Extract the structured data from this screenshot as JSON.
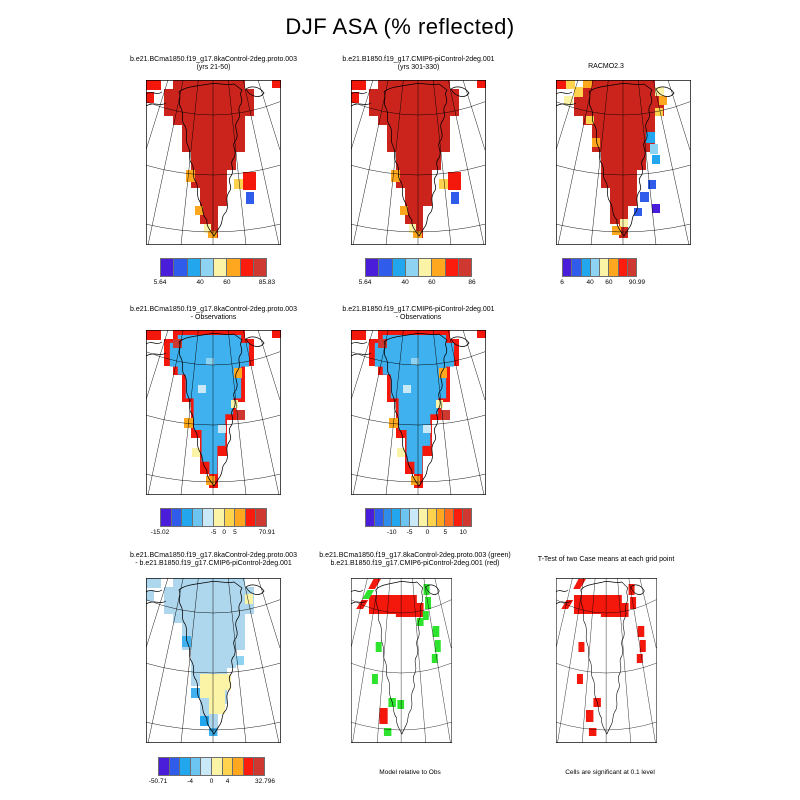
{
  "figure": {
    "title": "DJF ASA (% reflected)"
  },
  "panels": [
    {
      "id": "r1p1",
      "title_line1": "b.e21.BCma1850.f19_g17.8kaControl-2deg.proto.003",
      "title_line2": "(yrs 21-50)"
    },
    {
      "id": "r1p2",
      "title_line1": "b.e21.B1850.f19_g17.CMIP6-piControl-2deg.001",
      "title_line2": "(yrs 301-330)"
    },
    {
      "id": "r1p3",
      "title_line1": "RACMO2.3",
      "title_line2": ""
    },
    {
      "id": "r2p1",
      "title_line1": "b.e21.BCma1850.f19_g17.8kaControl-2deg.proto.003",
      "title_line2": "- Observations"
    },
    {
      "id": "r2p2",
      "title_line1": "b.e21.B1850.f19_g17.CMIP6-piControl-2deg.001",
      "title_line2": "- Observations"
    },
    {
      "id": "r3p1",
      "title_line1": "b.e21.BCma1850.f19_g17.8kaControl-2deg.proto.003",
      "title_line2": "- b.e21.B1850.f19_g17.CMIP6-piControl-2deg.001"
    },
    {
      "id": "r3p2",
      "title_line1": "b.e21.BCma1850.f19_g17.8kaControl-2deg.proto.003 (green)",
      "title_line2": "b.e21.B1850.f19_g17.CMIP6-piControl-2deg.001 (red)",
      "caption": "Model relative to Obs"
    },
    {
      "id": "r3p3",
      "title_line1": "T-Test of two Case means at each grid point",
      "title_line2": "",
      "caption": "Cells are significant at 0.1 level"
    }
  ],
  "colorbars": {
    "r1p1": {
      "cells": [
        "#4a1ddb",
        "#2f5ceb",
        "#22a7ee",
        "#8ed4f2",
        "#fbf3a6",
        "#ffa81f",
        "#fb1c0e",
        "#cf3830"
      ],
      "ticks": [
        {
          "label": "5.64",
          "pos": 0
        },
        {
          "label": "40",
          "pos": 0.375
        },
        {
          "label": "60",
          "pos": 0.625
        },
        {
          "label": "85.83",
          "pos": 1
        }
      ]
    },
    "r1p2": {
      "cells": [
        "#4a1ddb",
        "#2f5ceb",
        "#22a7ee",
        "#8ed4f2",
        "#fbf3a6",
        "#ffa81f",
        "#fb1c0e",
        "#cf3830"
      ],
      "ticks": [
        {
          "label": "5.64",
          "pos": 0
        },
        {
          "label": "40",
          "pos": 0.375
        },
        {
          "label": "60",
          "pos": 0.625
        },
        {
          "label": "86",
          "pos": 1
        }
      ]
    },
    "r1p3": {
      "cells": [
        "#4a1ddb",
        "#2f5ceb",
        "#22a7ee",
        "#8ed4f2",
        "#fbf3a6",
        "#ffa81f",
        "#fb1c0e",
        "#cf3830"
      ],
      "ticks": [
        {
          "label": "6",
          "pos": 0
        },
        {
          "label": "40",
          "pos": 0.375
        },
        {
          "label": "60",
          "pos": 0.625
        },
        {
          "label": "90.99",
          "pos": 1
        }
      ]
    },
    "r2p1": {
      "cells": [
        "#4a1ddb",
        "#2f5ceb",
        "#22a7ee",
        "#6cc4f0",
        "#c9e9f9",
        "#fbf3a6",
        "#ffd34e",
        "#ffa81f",
        "#fb1c0e",
        "#cf3830"
      ],
      "ticks": [
        {
          "label": "-15.02",
          "pos": 0
        },
        {
          "label": "-5",
          "pos": 0.5
        },
        {
          "label": "0",
          "pos": 0.6
        },
        {
          "label": "5",
          "pos": 0.7
        },
        {
          "label": "70.91",
          "pos": 1
        }
      ]
    },
    "r2p2": {
      "cells": [
        "#4a1ddb",
        "#2f5ceb",
        "#2f8ceb",
        "#22a7ee",
        "#6cc4f0",
        "#c9e9f9",
        "#fbf3a6",
        "#ffd34e",
        "#ffa81f",
        "#ff6a1f",
        "#fb1c0e",
        "#cf3830"
      ],
      "ticks": [
        {
          "label": "-10",
          "pos": 0.25
        },
        {
          "label": "-5",
          "pos": 0.417
        },
        {
          "label": "0",
          "pos": 0.583
        },
        {
          "label": "5",
          "pos": 0.75
        },
        {
          "label": "10",
          "pos": 0.917
        }
      ]
    },
    "r3p1": {
      "cells": [
        "#4a1ddb",
        "#2f5ceb",
        "#22a7ee",
        "#6cc4f0",
        "#c9e9f9",
        "#fbf3a6",
        "#ffd34e",
        "#ffa81f",
        "#fb1c0e",
        "#cf3830"
      ],
      "ticks": [
        {
          "label": "-50.71",
          "pos": 0
        },
        {
          "label": "-4",
          "pos": 0.3
        },
        {
          "label": "0",
          "pos": 0.5
        },
        {
          "label": "4",
          "pos": 0.65
        },
        {
          "label": "32.796",
          "pos": 1
        }
      ]
    }
  },
  "colors": {
    "dark_red": "#cb241d",
    "bright_red": "#f3170c",
    "orange": "#ffa81f",
    "gold": "#ffd34e",
    "pale_yellow": "#fbf3a6",
    "sky_blue": "#3fb1ef",
    "pale_blue": "#aed7ee",
    "cyan": "#22a7ee",
    "blue": "#2f5ceb",
    "violet": "#4a1ddb",
    "green": "#2ee32e"
  },
  "chart_data": [
    {
      "panel": "row1-left",
      "type": "heatmap",
      "projection": "polar stereographic map of Greenland",
      "variable": "ASA",
      "season": "DJF",
      "units": "% reflected",
      "title": "b.e21.BCma1850.f19_g17.8kaControl-2deg.proto.003",
      "subtitle": "(yrs 21-50)",
      "value_range": [
        5.64,
        85.83
      ],
      "colorbar_tick_labels": [
        "5.64",
        "40",
        "60",
        "85.83"
      ],
      "pattern": "entire ice sheet at maximum ~85% (dark red); few orange/yellow cells on SW margin and south tip; isolated red/yellow/blue cells off SE coast"
    },
    {
      "panel": "row1-middle",
      "type": "heatmap",
      "projection": "polar stereographic map of Greenland",
      "variable": "ASA",
      "season": "DJF",
      "units": "% reflected",
      "title": "b.e21.B1850.f19_g17.CMIP6-piControl-2deg.001",
      "subtitle": "(yrs 301-330)",
      "value_range": [
        5.64,
        86
      ],
      "colorbar_tick_labels": [
        "5.64",
        "40",
        "60",
        "86"
      ],
      "pattern": "nearly identical to row1-left: uniform dark red interior with sparse margin cells"
    },
    {
      "panel": "row1-right",
      "type": "heatmap",
      "projection": "polar stereographic map of Greenland",
      "variable": "ASA",
      "season": "DJF",
      "units": "% reflected",
      "title": "RACMO2.3",
      "subtitle": "",
      "value_range": [
        6,
        90.99
      ],
      "colorbar_tick_labels": [
        "6",
        "40",
        "60",
        "90.99"
      ],
      "pattern": "dark red interior; yellow/orange cells NW and NE margins; cyan/light-blue cells mid east coast; dark blue cells SE coast; orange at south tip"
    },
    {
      "panel": "row2-left",
      "type": "heatmap",
      "projection": "polar stereographic map of Greenland",
      "variable": "ASA difference",
      "season": "DJF",
      "units": "% reflected",
      "title": "b.e21.BCma1850.f19_g17.8kaControl-2deg.proto.003",
      "subtitle": "- Observations",
      "value_range": [
        -15.02,
        70.91
      ],
      "colorbar_tick_labels": [
        "-15.02",
        "-5",
        "0",
        "5",
        "70.91"
      ],
      "pattern": "interior slightly negative (~-5, sky blue); strong positive rim (red, >5) all around coast with orange/yellow transition cells"
    },
    {
      "panel": "row2-middle",
      "type": "heatmap",
      "projection": "polar stereographic map of Greenland",
      "variable": "ASA difference",
      "season": "DJF",
      "units": "% reflected",
      "title": "b.e21.B1850.f19_g17.CMIP6-piControl-2deg.001",
      "subtitle": "- Observations",
      "value_range": [
        -10,
        10
      ],
      "colorbar_tick_labels": [
        "-10",
        "-5",
        "0",
        "5",
        "10"
      ],
      "pattern": "same as row2-left: sky-blue interior, red coastal rim with orange/yellow cells"
    },
    {
      "panel": "row3-left",
      "type": "heatmap",
      "projection": "polar stereographic map of Greenland",
      "variable": "ASA case difference",
      "season": "DJF",
      "units": "% reflected",
      "title": "b.e21.BCma1850.f19_g17.8kaControl-2deg.proto.003",
      "subtitle": "- b.e21.B1850.f19_g17.CMIP6-piControl-2deg.001",
      "value_range": [
        -50.71,
        32.796
      ],
      "colorbar_tick_labels": [
        "-50.71",
        "-4",
        "0",
        "4",
        "32.796"
      ],
      "pattern": "mostly near-zero pale blue; pale yellow patch over south-central interior; scattered sky-blue/cyan cells on west and south margins"
    },
    {
      "panel": "row3-middle",
      "type": "heatmap",
      "projection": "polar stereographic map of Greenland (narrow frame)",
      "variable": "significant cells by case",
      "season": "DJF",
      "title": "b.e21.BCma1850.f19_g17.8kaControl-2deg.proto.003 (green)",
      "subtitle": "b.e21.B1850.f19_g17.CMIP6-piControl-2deg.001 (red)",
      "caption": "Model relative to Obs",
      "pattern": "white interior; solid red band across far north; green cells strung along NE, east, west and southern margins; one red cell near south tip"
    },
    {
      "panel": "row3-right",
      "type": "heatmap",
      "projection": "polar stereographic map of Greenland (narrow frame)",
      "variable": "t-test significance",
      "season": "DJF",
      "title": "T-Test of two Case means at each grid point",
      "subtitle": "",
      "caption": "Cells are significant at 0.1 level",
      "pattern": "white interior; solid red band across far north; red cells scattered along east, west and southern margins"
    }
  ]
}
